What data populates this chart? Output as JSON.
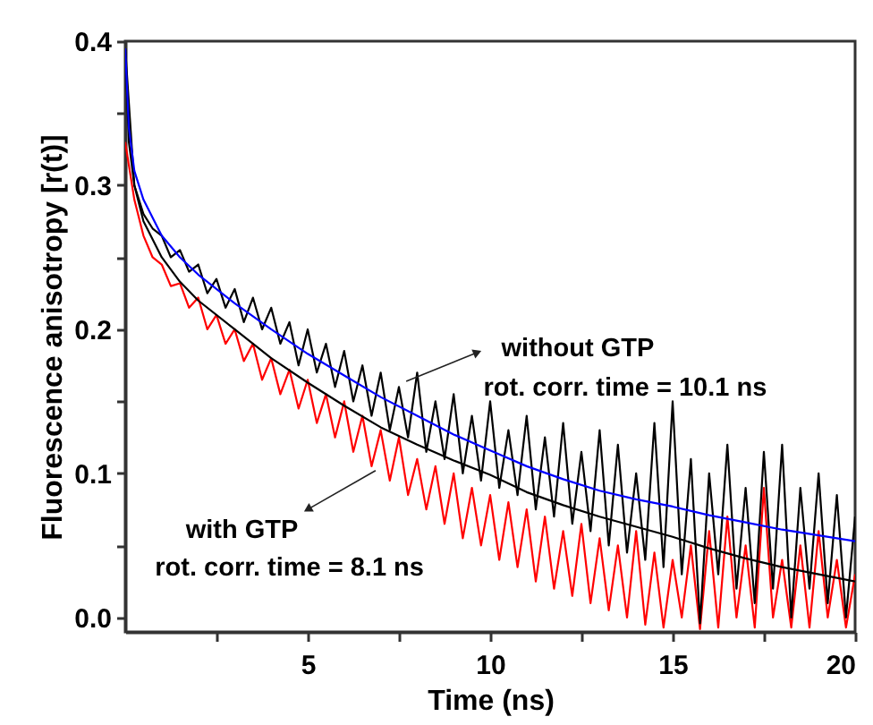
{
  "chart_data": {
    "type": "line",
    "xlabel": "Time (ns)",
    "ylabel": "Fluorescence anisotropy [r(t)]",
    "xlim": [
      0,
      20
    ],
    "ylim": [
      -0.01,
      0.4
    ],
    "xticks": [
      {
        "value": 2.5,
        "label": null
      },
      5,
      {
        "value": 7.5,
        "label": null
      },
      10,
      {
        "value": 12.5,
        "label": null
      },
      15,
      {
        "value": 17.5,
        "label": null
      },
      20
    ],
    "yticks": [
      {
        "value": 0,
        "label": "0.0"
      },
      {
        "value": 0.05,
        "label": null
      },
      0.1,
      {
        "value": 0.15,
        "label": null
      },
      0.2,
      {
        "value": 0.25,
        "label": null
      },
      0.3,
      {
        "value": 0.35,
        "label": null
      },
      0.4
    ],
    "grid": false,
    "marker": "none",
    "line_style": "solid",
    "annotations": [
      "without GTP",
      "rot. corr. time = 10.1 ns",
      "with GTP",
      "rot. corr. time = 8.1 ns"
    ],
    "series": [
      {
        "color": "#ff0000",
        "x": [
          0,
          0.25,
          0.5,
          0.75,
          1,
          1.25,
          1.5,
          1.75,
          2,
          2.25,
          2.5,
          2.75,
          3,
          3.25,
          3.5,
          3.75,
          4,
          4.25,
          4.5,
          4.75,
          5,
          5.25,
          5.5,
          5.75,
          6,
          6.25,
          6.5,
          6.75,
          7,
          7.25,
          7.5,
          7.75,
          8,
          8.25,
          8.5,
          8.75,
          9,
          9.25,
          9.5,
          9.75,
          10,
          10.25,
          10.5,
          10.75,
          11,
          11.25,
          11.5,
          11.75,
          12,
          12.25,
          12.5,
          12.75,
          13,
          13.25,
          13.5,
          13.75,
          14,
          14.25,
          14.5,
          14.75,
          15,
          15.25,
          15.5,
          15.75,
          16,
          16.25,
          16.5,
          16.75,
          17,
          17.25,
          17.5,
          17.75,
          18,
          18.25,
          18.5,
          18.75,
          19,
          19.25,
          19.5,
          19.75,
          20
        ],
        "values": [
          0.33,
          0.29,
          0.265,
          0.25,
          0.245,
          0.23,
          0.232,
          0.215,
          0.222,
          0.2,
          0.21,
          0.19,
          0.2,
          0.178,
          0.19,
          0.165,
          0.18,
          0.155,
          0.172,
          0.145,
          0.165,
          0.135,
          0.155,
          0.125,
          0.15,
          0.115,
          0.14,
          0.105,
          0.13,
          0.095,
          0.125,
          0.085,
          0.11,
          0.075,
          0.105,
          0.065,
          0.1,
          0.055,
          0.09,
          0.05,
          0.085,
          0.04,
          0.08,
          0.035,
          0.075,
          0.025,
          0.07,
          0.02,
          0.06,
          0.015,
          0.065,
          0.01,
          0.055,
          0.005,
          0.05,
          0.0,
          0.06,
          -0.005,
          0.045,
          -0.007,
          0.04,
          0.0,
          0.05,
          -0.008,
          0.06,
          -0.007,
          0.07,
          0.0,
          0.05,
          -0.007,
          0.09,
          0.0,
          0.04,
          -0.007,
          0.05,
          -0.007,
          0.06,
          0.0,
          0.04,
          -0.007,
          0.03
        ]
      },
      {
        "color": "#000000",
        "x": [
          0,
          0.25,
          0.5,
          0.75,
          1,
          1.25,
          1.5,
          1.75,
          2,
          2.25,
          2.5,
          2.75,
          3,
          3.25,
          3.5,
          3.75,
          4,
          4.25,
          4.5,
          4.75,
          5,
          5.25,
          5.5,
          5.75,
          6,
          6.25,
          6.5,
          6.75,
          7,
          7.25,
          7.5,
          7.75,
          8,
          8.25,
          8.5,
          8.75,
          9,
          9.25,
          9.5,
          9.75,
          10,
          10.25,
          10.5,
          10.75,
          11,
          11.25,
          11.5,
          11.75,
          12,
          12.25,
          12.5,
          12.75,
          13,
          13.25,
          13.5,
          13.75,
          14,
          14.25,
          14.5,
          14.75,
          15,
          15.25,
          15.5,
          15.75,
          16,
          16.25,
          16.5,
          16.75,
          17,
          17.25,
          17.5,
          17.75,
          18,
          18.25,
          18.5,
          18.75,
          19,
          19.25,
          19.5,
          19.75,
          20
        ],
        "values": [
          0.395,
          0.3,
          0.28,
          0.27,
          0.265,
          0.25,
          0.255,
          0.24,
          0.245,
          0.225,
          0.235,
          0.215,
          0.228,
          0.205,
          0.222,
          0.2,
          0.215,
          0.19,
          0.205,
          0.175,
          0.2,
          0.17,
          0.19,
          0.16,
          0.185,
          0.15,
          0.175,
          0.14,
          0.17,
          0.13,
          0.16,
          0.125,
          0.17,
          0.115,
          0.15,
          0.11,
          0.155,
          0.1,
          0.14,
          0.095,
          0.15,
          0.09,
          0.13,
          0.085,
          0.14,
          0.075,
          0.125,
          0.07,
          0.135,
          0.065,
          0.115,
          0.06,
          0.13,
          0.05,
          0.12,
          0.045,
          0.1,
          0.04,
          0.135,
          0.035,
          0.15,
          0.03,
          0.11,
          -0.004,
          0.1,
          0.03,
          0.12,
          0.02,
          0.09,
          0.01,
          0.115,
          0.02,
          0.12,
          0.0,
          0.09,
          0.02,
          0.1,
          0.01,
          0.085,
          0.0,
          0.07
        ]
      },
      {
        "color": "#000000",
        "x": [
          0,
          0.1,
          0.25,
          0.5,
          1,
          1.5,
          2,
          3,
          4,
          5,
          6,
          7,
          8,
          9,
          10,
          11,
          12,
          13,
          14,
          15,
          16,
          17,
          18,
          19,
          20
        ],
        "values": [
          0.395,
          0.33,
          0.3,
          0.275,
          0.25,
          0.233,
          0.22,
          0.2,
          0.18,
          0.163,
          0.147,
          0.132,
          0.12,
          0.109,
          0.099,
          0.087,
          0.078,
          0.07,
          0.063,
          0.056,
          0.048,
          0.041,
          0.035,
          0.03,
          0.025
        ]
      },
      {
        "color": "#0000ff",
        "x": [
          0,
          0.1,
          0.25,
          0.5,
          1,
          1.5,
          2,
          3,
          4,
          5,
          6,
          7,
          8,
          9,
          10,
          11,
          12,
          13,
          14,
          15,
          16,
          17,
          18,
          19,
          20
        ],
        "values": [
          0.395,
          0.34,
          0.31,
          0.29,
          0.265,
          0.25,
          0.238,
          0.218,
          0.2,
          0.183,
          0.168,
          0.153,
          0.14,
          0.127,
          0.116,
          0.105,
          0.096,
          0.088,
          0.082,
          0.077,
          0.071,
          0.066,
          0.061,
          0.057,
          0.053
        ]
      }
    ]
  }
}
